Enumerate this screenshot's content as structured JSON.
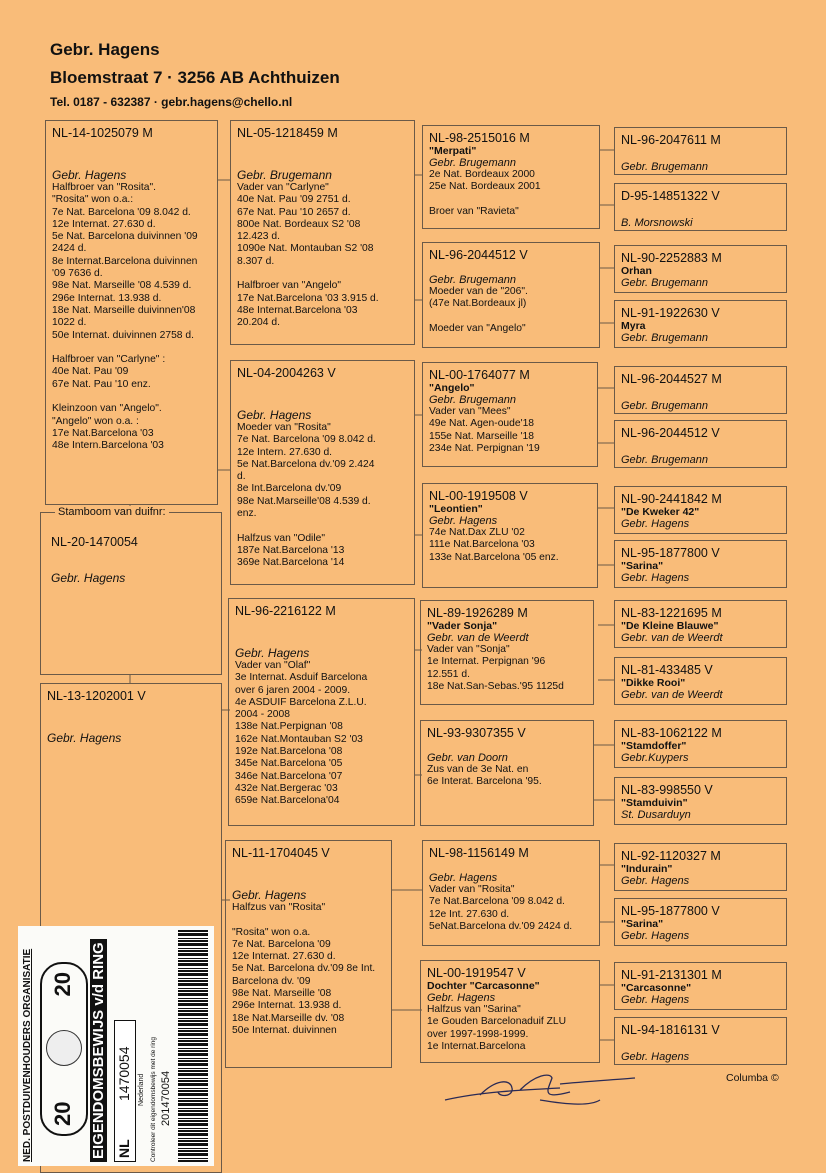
{
  "header": {
    "name": "Gebr. Hagens",
    "address": "Bloemstraat 7  ·  3256 AB  Achthuizen",
    "contact": "Tel. 0187 - 632387  ·  gebr.hagens@chello.nl"
  },
  "subject": {
    "legend": "Stamboom van duifnr:",
    "ring": "NL-20-1470054",
    "breeder": "Gebr. Hagens"
  },
  "gen1": [
    {
      "ring": "NL-14-1025079 M",
      "breeder": "Gebr. Hagens",
      "notes": [
        "Halfbroer van \"Rosita\".",
        "\"Rosita\" won o.a.:",
        "7e Nat. Barcelona '09  8.042 d.",
        "12e Internat. 27.630 d.",
        "5e Nat. Barcelona duivinnen '09",
        " 2424 d.",
        "8e Internat.Barcelona duivinnen",
        "'09  7636 d.",
        "98e Nat. Marseille '08  4.539 d.",
        "296e Internat.  13.938 d.",
        "18e Nat. Marseille duivinnen'08",
        "1022 d.",
        "50e Internat. duivinnen 2758 d.",
        "",
        "Halfbroer van \"Carlyne\" :",
        "40e Nat. Pau '09",
        "67e Nat. Pau '10  enz.",
        "",
        "Kleinzoon van \"Angelo\".",
        "\"Angelo\" won o.a. :",
        "17e Nat.Barcelona '03",
        "48e Intern.Barcelona '03"
      ]
    },
    {
      "ring": "NL-13-1202001 V",
      "breeder": "Gebr. Hagens",
      "notes": []
    }
  ],
  "gen2": [
    {
      "ring": "NL-05-1218459 M",
      "breeder": "Gebr. Brugemann",
      "notes": [
        "Vader van \"Carlyne\"",
        "40e Nat. Pau '09  2751 d.",
        "67e Nat. Pau '10  2657 d.",
        "800e Nat. Bordeaux S2 '08",
        "12.423 d.",
        "1090e Nat. Montauban S2  '08",
        "8.307 d.",
        "",
        "Halfbroer van \"Angelo\"",
        "17e Nat.Barcelona '03 3.915 d.",
        "48e Internat.Barcelona '03",
        "20.204 d."
      ]
    },
    {
      "ring": "NL-04-2004263 V",
      "breeder": "Gebr. Hagens",
      "notes": [
        "Moeder  van \"Rosita\"",
        "7e Nat. Barcelona '09  8.042 d.",
        "12e Intern. 27.630 d.",
        "5e Nat.Barcelona dv.'09   2.424",
        "d.",
        "8e Int.Barcelona dv.'09",
        "98e Nat.Marseille'08  4.539 d.",
        "enz.",
        "",
        "Halfzus van \"Odile\"",
        "187e Nat.Barcelona '13",
        "369e Nat.Barcelona '14"
      ]
    },
    {
      "ring": "NL-96-2216122 M",
      "breeder": "Gebr. Hagens",
      "notes": [
        "Vader van \"Olaf\"",
        "3e  Internat. Asduif  Barcelona",
        "over 6 jaren 2004 - 2009.",
        "4e ASDUIF  Barcelona Z.L.U.",
        "2004 - 2008",
        "138e Nat.Perpignan '08",
        "162e Nat.Montauban S2 '03",
        "192e Nat.Barcelona '08",
        "345e Nat.Barcelona '05",
        "346e Nat.Barcelona '07",
        "432e Nat.Bergerac  '03",
        "659e Nat.Barcelona'04"
      ]
    },
    {
      "ring": "NL-11-1704045 V",
      "breeder": "Gebr. Hagens",
      "notes": [
        "Halfzus van \"Rosita\"",
        "",
        "\"Rosita\" won o.a.",
        "7e Nat. Barcelona '09",
        "12e Internat. 27.630 d.",
        "5e Nat. Barcelona dv.'09 8e Int.",
        "Barcelona dv. '09",
        "98e Nat. Marseille '08",
        "296e Internat.  13.938 d.",
        "18e Nat.Marseille dv. '08",
        "50e Internat. duivinnen"
      ]
    }
  ],
  "gen3": [
    {
      "ring": "NL-98-2515016 M",
      "name": "\"Merpati\"",
      "breeder": "Gebr. Brugemann",
      "notes": [
        "2e Nat. Bordeaux 2000",
        "25e Nat. Bordeaux 2001",
        "",
        "Broer van \"Ravieta\""
      ]
    },
    {
      "ring": "NL-96-2044512 V",
      "name": "",
      "breeder": "Gebr. Brugemann",
      "notes": [
        "Moeder van de \"206\".",
        "(47e Nat.Bordeaux jl)",
        "",
        "Moeder van \"Angelo\""
      ]
    },
    {
      "ring": "NL-00-1764077 M",
      "name": "\"Angelo\"",
      "breeder": "Gebr. Brugemann",
      "notes": [
        "Vader van \"Mees\"",
        "49e Nat. Agen-oude'18",
        "155e Nat. Marseille '18",
        "234e Nat. Perpignan '19"
      ]
    },
    {
      "ring": "NL-00-1919508 V",
      "name": "\"Leontien\"",
      "breeder": "Gebr. Hagens",
      "notes": [
        " 74e Nat.Dax ZLU '02",
        "111e Nat.Barcelona '03",
        "133e Nat.Barcelona '05 enz."
      ]
    },
    {
      "ring": "NL-89-1926289 M",
      "name": "\"Vader Sonja\"",
      "breeder": "Gebr. van de Weerdt",
      "notes": [
        "Vader van \"Sonja\"",
        "1e Internat. Perpignan '96",
        "12.551 d.",
        "18e Nat.San-Sebas.'95 1125d"
      ]
    },
    {
      "ring": "NL-93-9307355 V",
      "name": "",
      "breeder": "Gebr. van Doorn",
      "notes": [
        "Zus van de 3e Nat. en",
        "6e Interat. Barcelona '95."
      ]
    },
    {
      "ring": "NL-98-1156149 M",
      "name": "",
      "breeder": "Gebr. Hagens",
      "notes": [
        "Vader van \"Rosita\"",
        "7e Nat.Barcelona '09  8.042 d.",
        "12e Int. 27.630 d.",
        "5eNat.Barcelona dv.'09 2424 d."
      ]
    },
    {
      "ring": "NL-00-1919547 V",
      "name": "Dochter \"Carcasonne\"",
      "breeder": "Gebr. Hagens",
      "notes": [
        "Halfzus van \"Sarina\"",
        "1e Gouden Barcelonaduif ZLU",
        "over 1997-1998-1999.",
        "1e Internat.Barcelona"
      ]
    }
  ],
  "gen4": [
    {
      "ring": "NL-96-2047611 M",
      "name": "",
      "breeder": "Gebr. Brugemann"
    },
    {
      "ring": "D-95-14851322 V",
      "name": "",
      "breeder": "B. Morsnowski"
    },
    {
      "ring": "NL-90-2252883 M",
      "name": "Orhan",
      "breeder": "Gebr. Brugemann"
    },
    {
      "ring": "NL-91-1922630 V",
      "name": "Myra",
      "breeder": "Gebr. Brugemann"
    },
    {
      "ring": "NL-96-2044527 M",
      "name": "",
      "breeder": "Gebr. Brugemann"
    },
    {
      "ring": "NL-96-2044512 V",
      "name": "",
      "breeder": "Gebr. Brugemann"
    },
    {
      "ring": "NL-90-2441842 M",
      "name": "\"De Kweker 42\"",
      "breeder": "Gebr. Hagens"
    },
    {
      "ring": "NL-95-1877800 V",
      "name": "\"Sarina\"",
      "breeder": "Gebr. Hagens"
    },
    {
      "ring": "NL-83-1221695 M",
      "name": "\"De Kleine Blauwe\"",
      "breeder": "Gebr. van de Weerdt"
    },
    {
      "ring": "NL-81-433485 V",
      "name": "\"Dikke Rooi\"",
      "breeder": "Gebr. van de Weerdt"
    },
    {
      "ring": "NL-83-1062122 M",
      "name": "\"Stamdoffer\"",
      "breeder": "Gebr.Kuypers"
    },
    {
      "ring": "NL-83-998550 V",
      "name": "\"Stamduivin\"",
      "breeder": "St. Dusarduyn"
    },
    {
      "ring": "NL-92-1120327 M",
      "name": "\"Indurain\"",
      "breeder": "Gebr. Hagens"
    },
    {
      "ring": "NL-95-1877800 V",
      "name": "\"Sarina\"",
      "breeder": "Gebr. Hagens"
    },
    {
      "ring": "NL-91-2131301 M",
      "name": "\"Carcasonne\"",
      "breeder": "Gebr. Hagens"
    },
    {
      "ring": "NL-94-1816131 V",
      "name": "",
      "breeder": "Gebr. Hagens"
    }
  ],
  "footer": {
    "credit": "Columba ©"
  },
  "ring_card": {
    "organisation": "NED. POSTDUIVENHOUDERS ORGANISATIE",
    "title": "EIGENDOMSBEWIJS v/d RING",
    "year_left": "20",
    "year_right": "20",
    "country_code": "NL",
    "ring_number": "1470054",
    "country": "Nederland",
    "check_note": "Controleer dit eigendomsbewijs met de ring",
    "barcode_number": "201470054"
  },
  "colors": {
    "paper": "#f9bc79",
    "border": "#6b5a48",
    "text": "#111111"
  }
}
